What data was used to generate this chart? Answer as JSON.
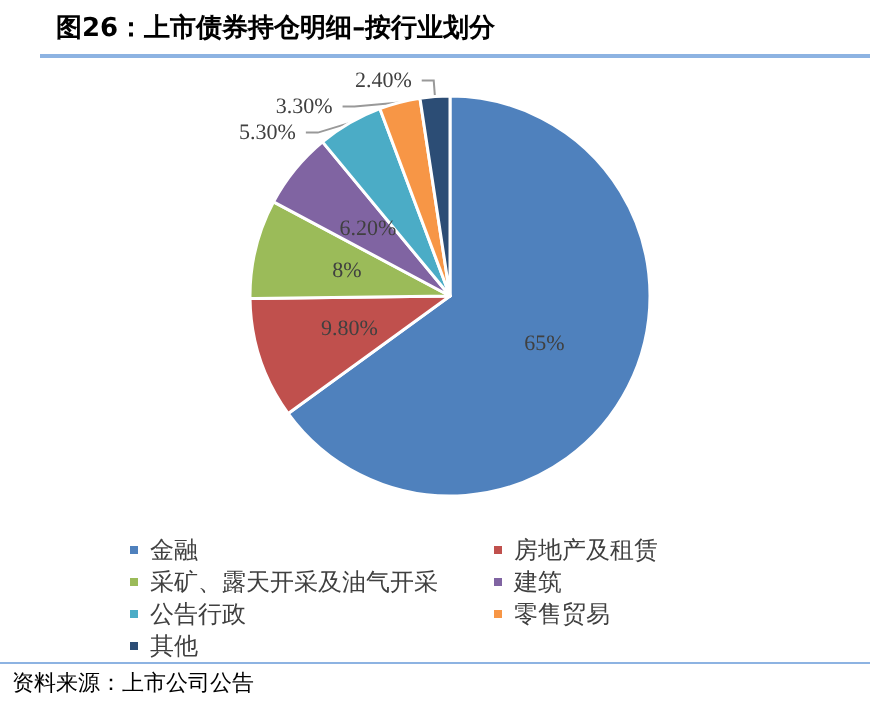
{
  "chart_data": {
    "type": "pie",
    "title": "图26：上市债券持仓明细–按行业划分",
    "categories": [
      "金融",
      "房地产及租赁",
      "采矿、露天开采及油气开采",
      "建筑",
      "公告行政",
      "零售贸易",
      "其他"
    ],
    "values": [
      65,
      9.8,
      8,
      6.2,
      5.3,
      3.3,
      2.4
    ],
    "value_labels": [
      "65%",
      "9.80%",
      "8%",
      "6.20%",
      "5.30%",
      "3.30%",
      "2.40%"
    ],
    "colors": [
      "#4f81bd",
      "#c0504d",
      "#9bbb59",
      "#8064a2",
      "#4bacc6",
      "#f79646",
      "#2c4d75"
    ],
    "legend": "bottom",
    "annotations": [
      "资料来源：上市公司公告"
    ]
  }
}
